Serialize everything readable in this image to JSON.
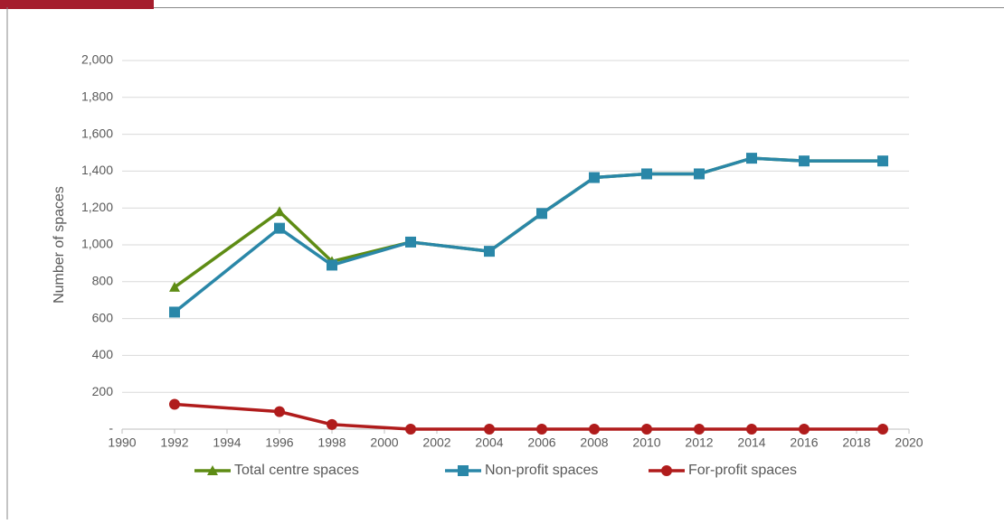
{
  "chart_data": {
    "type": "line",
    "y_label": "Number of spaces",
    "x": [
      1992,
      1996,
      1998,
      2001,
      2004,
      2006,
      2008,
      2010,
      2012,
      2014,
      2016,
      2019
    ],
    "series": [
      {
        "name": "Total centre spaces",
        "color": "#5e8c14",
        "marker": "triangle",
        "values": [
          770,
          1180,
          910,
          1015,
          965,
          1170,
          1365,
          1385,
          1385,
          1470,
          1455,
          1455
        ]
      },
      {
        "name": "Non-profit spaces",
        "color": "#2a87a8",
        "marker": "square",
        "values": [
          635,
          1090,
          890,
          1015,
          965,
          1170,
          1365,
          1385,
          1385,
          1470,
          1455,
          1455
        ]
      },
      {
        "name": "For-profit spaces",
        "color": "#b01c1c",
        "marker": "circle",
        "values": [
          135,
          95,
          25,
          0,
          0,
          0,
          0,
          0,
          0,
          0,
          0,
          0
        ]
      }
    ],
    "xlim": [
      1990,
      2020
    ],
    "xticks": [
      1990,
      1992,
      1994,
      1996,
      1998,
      2000,
      2002,
      2004,
      2006,
      2008,
      2010,
      2012,
      2014,
      2016,
      2018,
      2020
    ],
    "ylim": [
      0,
      2000
    ],
    "yticks": [
      {
        "value": 0,
        "label": "-"
      },
      200,
      400,
      600,
      800,
      {
        "value": 1000,
        "label": "1,000"
      },
      {
        "value": 1200,
        "label": "1,200"
      },
      {
        "value": 1400,
        "label": "1,400"
      },
      {
        "value": 1600,
        "label": "1,600"
      },
      {
        "value": 1800,
        "label": "1,800"
      },
      {
        "value": 2000,
        "label": "2,000"
      }
    ],
    "grid": true,
    "legend": "bottom"
  }
}
